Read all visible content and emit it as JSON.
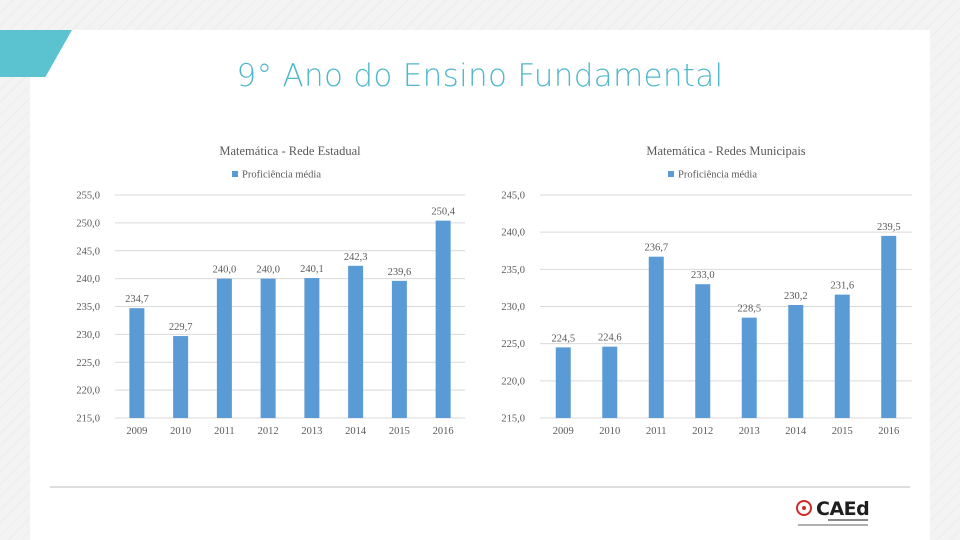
{
  "slide": {
    "title": "9° Ano do Ensino Fundamental"
  },
  "logo": {
    "text": "CAEd"
  },
  "colors": {
    "accent": "#5bc2cf",
    "title": "#4fb8cb",
    "bar": "#5b9bd5",
    "grid": "#d9d9d9"
  },
  "chart_data": [
    {
      "type": "bar",
      "title": "Matemática - Rede Estadual",
      "categories": [
        "2009",
        "2010",
        "2011",
        "2012",
        "2013",
        "2014",
        "2015",
        "2016"
      ],
      "series": [
        {
          "name": "Proficiência média",
          "values": [
            234.7,
            229.7,
            240.0,
            240.0,
            240.1,
            242.3,
            239.6,
            250.4
          ]
        }
      ],
      "data_labels": [
        "234,7",
        "229,7",
        "240,0",
        "240,0",
        "240,1",
        "242,3",
        "239,6",
        "250,4"
      ],
      "ylim": [
        215,
        255
      ],
      "yticks": [
        "215,0",
        "220,0",
        "225,0",
        "230,0",
        "235,0",
        "240,0",
        "245,0",
        "250,0",
        "255,0"
      ],
      "grid": true,
      "legend": "top"
    },
    {
      "type": "bar",
      "title": "Matemática - Redes Municipais",
      "categories": [
        "2009",
        "2010",
        "2011",
        "2012",
        "2013",
        "2014",
        "2015",
        "2016"
      ],
      "series": [
        {
          "name": "Proficiência média",
          "values": [
            224.5,
            224.6,
            236.7,
            233.0,
            228.5,
            230.2,
            231.6,
            239.5
          ]
        }
      ],
      "data_labels": [
        "224,5",
        "224,6",
        "236,7",
        "233,0",
        "228,5",
        "230,2",
        "231,6",
        "239,5"
      ],
      "ylim": [
        215,
        245
      ],
      "yticks": [
        "215,0",
        "220,0",
        "225,0",
        "230,0",
        "235,0",
        "240,0",
        "245,0"
      ],
      "grid": true,
      "legend": "top"
    }
  ]
}
